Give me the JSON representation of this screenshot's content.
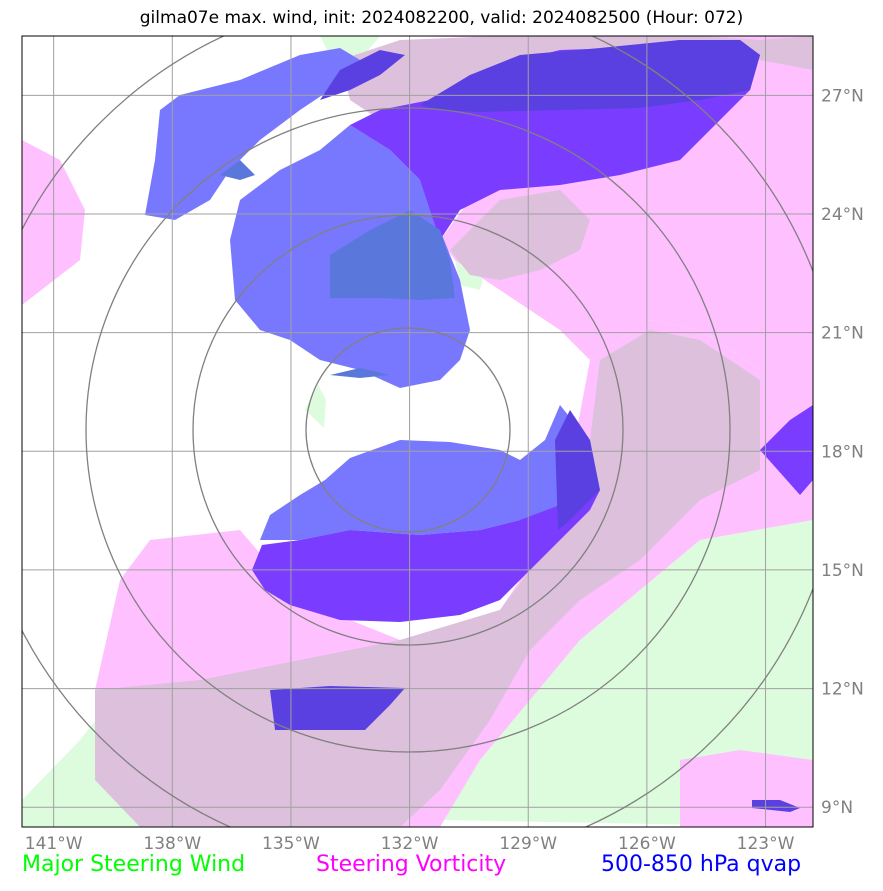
{
  "title": "gilma07e max. wind, init: 2024082200, valid: 2024082500 (Hour: 072)",
  "map": {
    "lon_range": [
      -141.8,
      -121.8
    ],
    "lat_range": [
      8.5,
      28.5
    ],
    "lon_ticks": [
      "141°W",
      "138°W",
      "135°W",
      "132°W",
      "129°W",
      "126°W",
      "123°W"
    ],
    "lat_ticks": [
      "27°N",
      "24°N",
      "21°N",
      "18°N",
      "15°N",
      "12°N",
      "9°N"
    ]
  },
  "legend": {
    "wind": {
      "label": "Major Steering Wind",
      "color": "#00ff00"
    },
    "vorticity": {
      "label": "Steering Vorticity",
      "color": "#ff00ff"
    },
    "qvap": {
      "label": "500-850 hPa qvap",
      "color": "#0000ff"
    }
  },
  "colors": {
    "wind_fill": "#ddfcdd",
    "vort_fill": "#ffc0ff",
    "vort_over_wind": "#dcc0dc",
    "qvap_light": "#7878ff",
    "qvap_dark": "#7a3cff",
    "qvap_overlap": "#5a40e0",
    "qvap_mid": "#5a78dc",
    "grid": "#a0a0a0",
    "rings": "#808080"
  }
}
